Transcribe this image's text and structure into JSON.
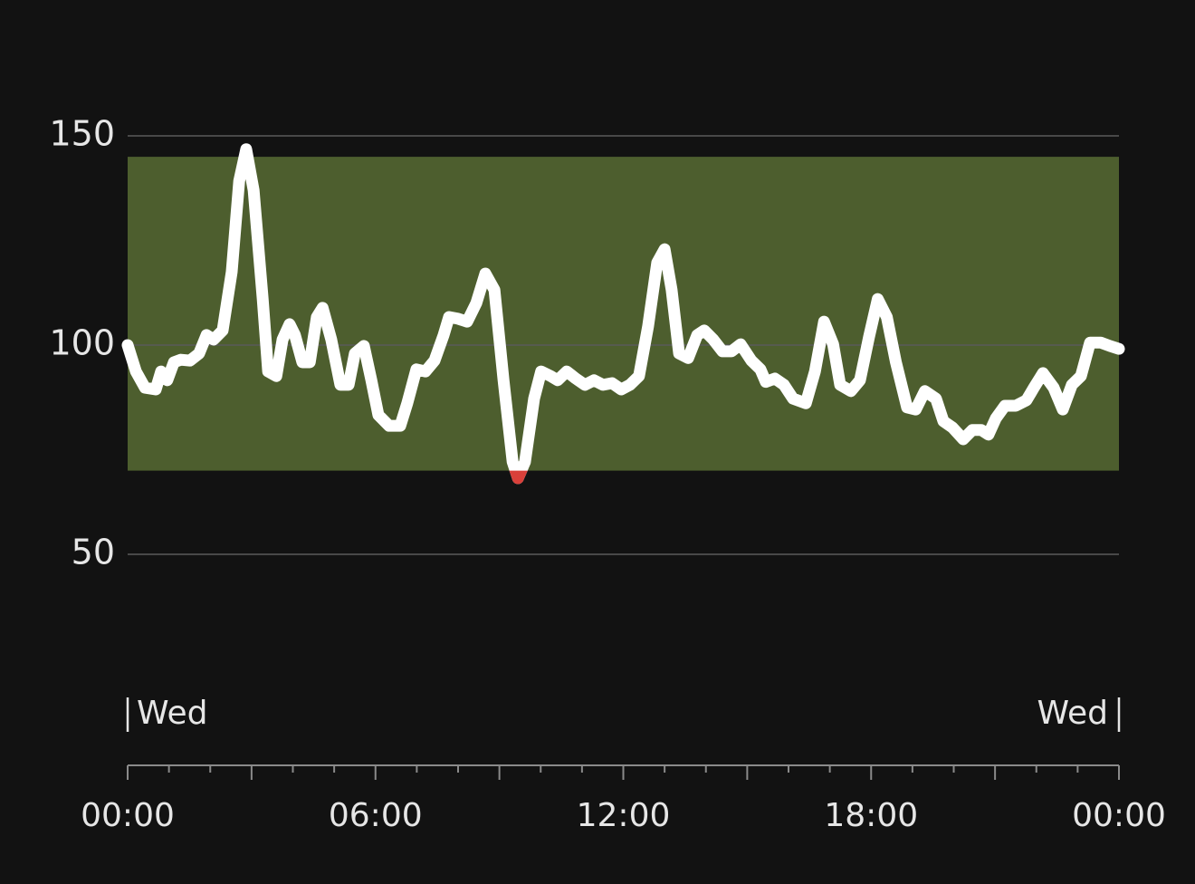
{
  "chart_data": {
    "type": "line",
    "x": [
      0,
      0.2,
      0.42,
      0.68,
      0.81,
      0.96,
      1.12,
      1.29,
      1.51,
      1.73,
      1.91,
      2.08,
      2.3,
      2.52,
      2.7,
      2.87,
      3.05,
      3.27,
      3.4,
      3.6,
      3.75,
      3.92,
      4.05,
      4.23,
      4.41,
      4.58,
      4.72,
      4.93,
      5.15,
      5.35,
      5.5,
      5.72,
      5.9,
      6.07,
      6.33,
      6.6,
      6.77,
      6.99,
      7.21,
      7.43,
      7.65,
      7.78,
      8,
      8.22,
      8.44,
      8.66,
      8.88,
      9.1,
      9.32,
      9.45,
      9.62,
      9.84,
      10.01,
      10.24,
      10.41,
      10.63,
      10.85,
      11.07,
      11.29,
      11.51,
      11.73,
      11.95,
      12.16,
      12.38,
      12.6,
      12.82,
      13,
      13.17,
      13.35,
      13.57,
      13.79,
      13.96,
      14.18,
      14.4,
      14.62,
      14.84,
      15.1,
      15.32,
      15.45,
      15.67,
      15.89,
      16.11,
      16.42,
      16.64,
      16.86,
      17.08,
      17.25,
      17.51,
      17.73,
      17.95,
      18.16,
      18.38,
      18.6,
      18.87,
      19.08,
      19.3,
      19.57,
      19.75,
      19.97,
      20.23,
      20.45,
      20.67,
      20.84,
      21.02,
      21.24,
      21.5,
      21.76,
      21.94,
      22.16,
      22.42,
      22.64,
      22.86,
      23.08,
      23.3,
      23.56,
      23.78,
      24
    ],
    "series": [
      {
        "color": "#ffffff",
        "values": [
          100,
          93.7,
          89.8,
          89.4,
          93.7,
          91.6,
          95.9,
          96.5,
          96.3,
          98,
          102.4,
          101.3,
          103.5,
          117.5,
          139.2,
          146.8,
          137,
          111,
          93.7,
          92.6,
          101.3,
          105,
          102.4,
          95.9,
          95.9,
          106.7,
          108.9,
          101.3,
          90.5,
          90.5,
          98,
          99.8,
          91.6,
          83.3,
          80.7,
          80.7,
          86.1,
          94.2,
          93.7,
          96.3,
          102.4,
          106.7,
          106.3,
          105.6,
          110,
          117.1,
          113.2,
          91.6,
          72.1,
          68.2,
          72.1,
          87.2,
          93.7,
          92.6,
          91.6,
          93.7,
          92,
          90.5,
          91.6,
          90.5,
          90.9,
          89.4,
          90.5,
          92.6,
          104.5,
          119.7,
          122.9,
          113.2,
          98,
          96.9,
          102.4,
          103.5,
          101.3,
          98.5,
          98.5,
          100.2,
          96.3,
          94.2,
          91.2,
          92,
          90.5,
          87.2,
          86.1,
          93.7,
          105.6,
          100.2,
          90.5,
          89,
          91.6,
          102,
          111,
          106.7,
          95.9,
          85.1,
          84.6,
          89,
          87.2,
          81.8,
          80.3,
          77.5,
          79.7,
          79.7,
          78.6,
          82.5,
          85.5,
          85.5,
          86.8,
          89.8,
          93.3,
          89.8,
          84.6,
          90.5,
          92.6,
          100.6,
          100.6,
          99.8,
          99.1
        ]
      }
    ],
    "low_color": "#d9403a",
    "target_range": {
      "from": 70,
      "to": 145,
      "color": "#4d5e2e"
    },
    "ylim": [
      50,
      150
    ],
    "yticks": [
      50,
      100,
      150
    ],
    "grid": true,
    "xlim": [
      0,
      24
    ],
    "xticks": [
      {
        "value": 0,
        "label": "00:00"
      },
      {
        "value": 6,
        "label": "06:00"
      },
      {
        "value": 12,
        "label": "12:00"
      },
      {
        "value": 18,
        "label": "18:00"
      },
      {
        "value": 24,
        "label": "00:00"
      }
    ],
    "minor_xticks": [
      0,
      1,
      2,
      3,
      4,
      5,
      6,
      7,
      8,
      9,
      10,
      11,
      12,
      13,
      14,
      15,
      16,
      17,
      18,
      19,
      20,
      21,
      22,
      23,
      24
    ],
    "day_labels": [
      "Wed",
      "Wed"
    ]
  }
}
